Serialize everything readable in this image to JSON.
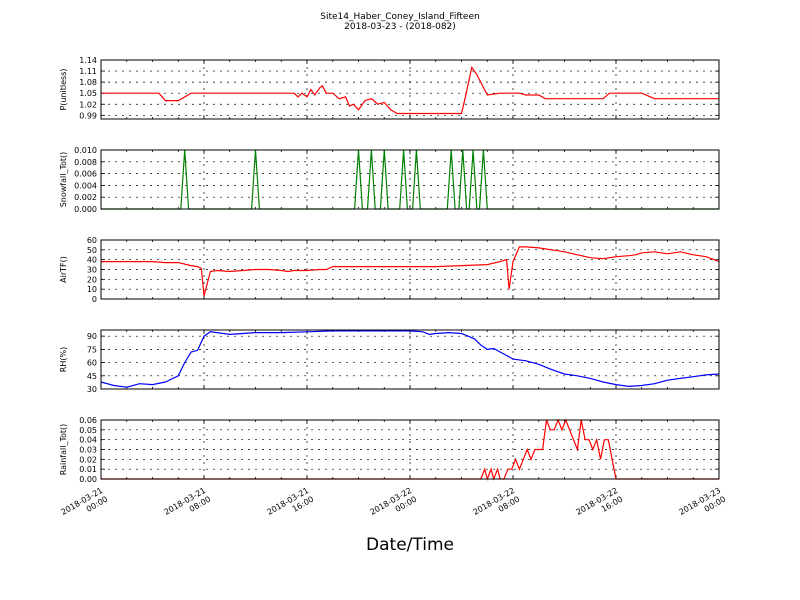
{
  "title": "Site14_Haber_Coney_Island_Fifteen",
  "subtitle": "2018-03-23 - (2018-082)",
  "xlabel": "Date/Time",
  "x_ticks": [
    {
      "line1": "2018-03-21",
      "line2": "00:00"
    },
    {
      "line1": "2018-03-21",
      "line2": "08:00"
    },
    {
      "line1": "2018-03-21",
      "line2": "16:00"
    },
    {
      "line1": "2018-03-22",
      "line2": "00:00"
    },
    {
      "line1": "2018-03-22",
      "line2": "08:00"
    },
    {
      "line1": "2018-03-22",
      "line2": "16:00"
    },
    {
      "line1": "2018-03-23",
      "line2": "00:00"
    }
  ],
  "chart_data": [
    {
      "type": "line",
      "ylabel": "P(unitless)",
      "color": "#ff0000",
      "ylim": [
        0.98,
        1.14
      ],
      "yticks": [
        "1.14",
        "1.11",
        "1.08",
        "1.05",
        "1.02",
        "0.99"
      ],
      "ytick_values": [
        1.14,
        1.11,
        1.08,
        1.05,
        1.02,
        0.99
      ],
      "x": [
        0,
        1.5,
        2,
        2.5,
        3,
        4,
        4.5,
        5,
        6,
        7,
        7.5,
        8,
        9,
        10,
        11,
        12,
        13,
        14,
        15,
        15.3,
        15.6,
        16,
        16.3,
        16.6,
        17,
        17.2,
        17.5,
        18,
        18.5,
        19,
        19.3,
        19.6,
        20,
        20.5,
        21,
        21.5,
        22,
        22.5,
        23,
        23,
        24,
        25,
        26,
        27,
        28,
        28.3,
        28.8,
        29.2,
        30,
        31,
        32,
        32.5,
        33,
        34,
        34.5,
        35,
        36,
        37,
        38,
        38.5,
        39,
        39.5,
        40,
        40.5,
        41,
        42,
        43,
        44,
        45,
        46,
        47,
        48
      ],
      "values": [
        1.05,
        1.05,
        1.05,
        1.05,
        1.05,
        1.05,
        1.05,
        1.03,
        1.03,
        1.05,
        1.05,
        1.05,
        1.05,
        1.05,
        1.05,
        1.05,
        1.05,
        1.05,
        1.05,
        1.04,
        1.05,
        1.04,
        1.06,
        1.045,
        1.065,
        1.07,
        1.05,
        1.05,
        1.035,
        1.04,
        1.015,
        1.02,
        1.005,
        1.03,
        1.035,
        1.02,
        1.025,
        1.005,
        0.995,
        0.995,
        0.995,
        0.995,
        0.995,
        0.995,
        0.995,
        1.04,
        1.12,
        1.1,
        1.045,
        1.05,
        1.05,
        1.05,
        1.045,
        1.045,
        1.035,
        1.035,
        1.035,
        1.035,
        1.035,
        1.035,
        1.035,
        1.05,
        1.05,
        1.05,
        1.05,
        1.05,
        1.035,
        1.035,
        1.035,
        1.035,
        1.035,
        1.035
      ]
    },
    {
      "type": "line",
      "ylabel": "Snowfall_Tot()",
      "color": "#008000",
      "ylim": [
        0,
        0.01
      ],
      "yticks": [
        "0.010",
        "0.008",
        "0.006",
        "0.004",
        "0.002",
        "0.000"
      ],
      "ytick_values": [
        0.01,
        0.008,
        0.006,
        0.004,
        0.002,
        0
      ],
      "x": [
        0,
        6.2,
        6.5,
        6.8,
        11.7,
        12.0,
        12.3,
        19.7,
        20.0,
        20.3,
        20.7,
        21.0,
        21.3,
        21.7,
        22.0,
        22.3,
        23.2,
        23.5,
        23.8,
        24.2,
        24.5,
        24.8,
        26.9,
        27.2,
        27.5,
        27.8,
        28.1,
        28.4,
        28.6,
        28.9,
        29.2,
        29.4,
        29.7,
        30.0,
        48
      ],
      "values": [
        0,
        0,
        0.01,
        0,
        0,
        0.01,
        0,
        0,
        0.01,
        0,
        0,
        0.01,
        0,
        0,
        0.01,
        0,
        0,
        0.01,
        0,
        0,
        0.01,
        0,
        0,
        0.01,
        0,
        0,
        0.01,
        0,
        0,
        0.01,
        0,
        0,
        0.01,
        0,
        0
      ]
    },
    {
      "type": "line",
      "ylabel": "AirTF()",
      "color": "#ff0000",
      "ylim": [
        0,
        60
      ],
      "yticks": [
        "60",
        "50",
        "40",
        "30",
        "20",
        "10",
        "0"
      ],
      "ytick_values": [
        60,
        50,
        40,
        30,
        20,
        10,
        0
      ],
      "x": [
        0,
        2,
        4,
        5,
        6,
        7,
        7.5,
        7.8,
        8,
        8.5,
        9,
        10,
        11,
        12,
        13,
        14,
        14.5,
        15,
        16,
        17,
        17.5,
        18,
        20,
        22,
        24,
        26,
        28,
        30,
        31,
        31.5,
        31.7,
        32,
        32.5,
        33,
        34,
        35,
        35.5,
        36,
        37,
        38,
        39,
        40,
        41,
        41.5,
        42,
        43,
        44,
        45,
        46,
        47,
        48
      ],
      "values": [
        38,
        38,
        38,
        37,
        37,
        34,
        33,
        31,
        3,
        28,
        29,
        28,
        29,
        30,
        30,
        29,
        28,
        29,
        29,
        30,
        30,
        33,
        33,
        33,
        33,
        33,
        34,
        35,
        38,
        40,
        10,
        38,
        53,
        53,
        52,
        50,
        49,
        48,
        45,
        42,
        41,
        43,
        44,
        45,
        47,
        48,
        46,
        48,
        45,
        43,
        38
      ]
    },
    {
      "type": "line",
      "ylabel": "RH(%)",
      "color": "#0000ff",
      "ylim": [
        30,
        97
      ],
      "yticks": [
        "90",
        "75",
        "60",
        "45",
        "30"
      ],
      "ytick_values": [
        90,
        75,
        60,
        45,
        30
      ],
      "x": [
        0,
        1,
        2,
        3,
        4,
        5,
        6,
        6.5,
        7,
        7.5,
        8,
        8.5,
        9,
        10,
        11,
        12,
        14,
        16,
        18,
        20,
        22,
        24,
        25,
        25.5,
        26,
        27,
        28,
        29,
        29.5,
        30,
        30.5,
        31,
        31.5,
        32,
        33,
        34,
        35,
        36,
        37,
        38,
        39,
        40,
        41,
        42,
        43,
        44,
        45,
        46,
        47,
        48
      ],
      "values": [
        38,
        34,
        32,
        36,
        35,
        38,
        45,
        60,
        72,
        74,
        90,
        95,
        94,
        92,
        93,
        94,
        94,
        95,
        96,
        96,
        96,
        96,
        95,
        92,
        93,
        94,
        93,
        87,
        80,
        75,
        76,
        72,
        68,
        64,
        62,
        58,
        52,
        47,
        45,
        42,
        38,
        35,
        33,
        34,
        36,
        40,
        42,
        44,
        46,
        47
      ]
    },
    {
      "type": "line",
      "ylabel": "Rainfall_Tot()",
      "color": "#ff0000",
      "ylim": [
        0,
        0.06
      ],
      "yticks": [
        "0.06",
        "0.05",
        "0.04",
        "0.03",
        "0.02",
        "0.01",
        "0.00"
      ],
      "ytick_values": [
        0.06,
        0.05,
        0.04,
        0.03,
        0.02,
        0.01,
        0
      ],
      "x": [
        0,
        29.5,
        29.8,
        30.0,
        30.3,
        30.5,
        30.8,
        31.0,
        31.3,
        31.6,
        31.9,
        32.2,
        32.5,
        32.8,
        33.1,
        33.4,
        33.7,
        34.0,
        34.3,
        34.6,
        34.9,
        35.2,
        35.5,
        35.8,
        36.1,
        36.4,
        36.7,
        37.0,
        37.3,
        37.6,
        37.9,
        38.2,
        38.5,
        38.8,
        39.1,
        39.4,
        39.7,
        40.0,
        48
      ],
      "values": [
        0,
        0,
        0.01,
        0,
        0.01,
        0,
        0.01,
        0,
        0,
        0.01,
        0.01,
        0.02,
        0.01,
        0.02,
        0.03,
        0.02,
        0.03,
        0.03,
        0.03,
        0.06,
        0.05,
        0.05,
        0.06,
        0.05,
        0.06,
        0.05,
        0.04,
        0.03,
        0.06,
        0.04,
        0.04,
        0.03,
        0.04,
        0.02,
        0.04,
        0.04,
        0.02,
        0,
        0
      ]
    }
  ]
}
